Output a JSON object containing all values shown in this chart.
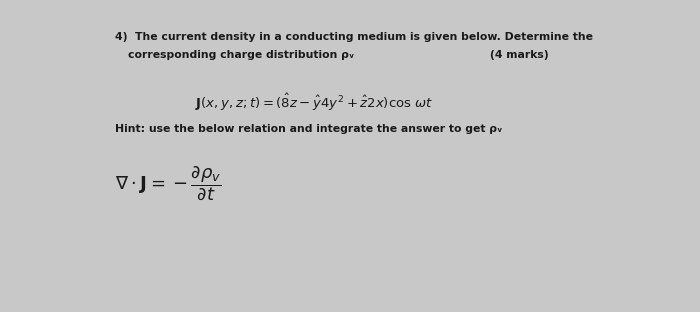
{
  "bg_color": "#c8c8c8",
  "paper_color": "#eeede9",
  "title_line1": "4)  The current density in a conducting medium is given below. Determine the",
  "title_line2": "corresponding charge distribution ρᵥ",
  "marks": "(4 marks)",
  "hint_text": "Hint: use the below relation and integrate the answer to get ρᵥ",
  "text_color": "#1a1a1a",
  "title_fontsize": 7.8,
  "hint_fontsize": 7.8,
  "eq_fontsize": 9.5,
  "div_fontsize": 11
}
